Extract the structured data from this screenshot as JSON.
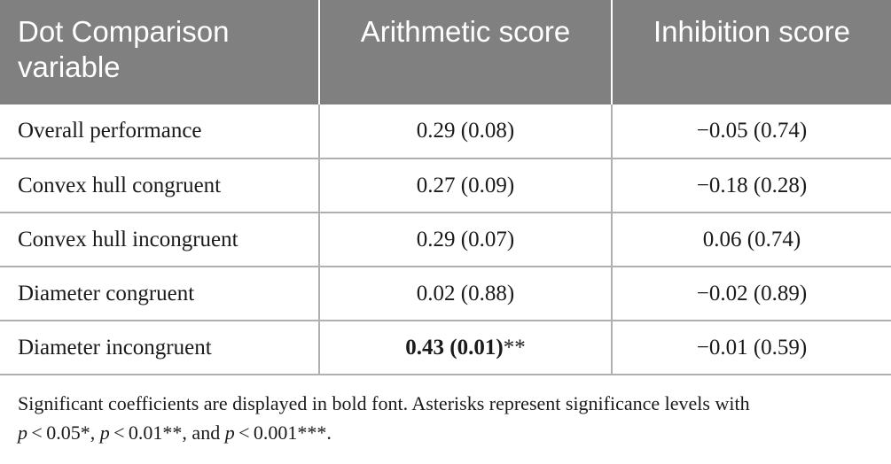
{
  "table": {
    "headers": [
      "Dot Comparison variable",
      "Arithmetic score",
      "Inhibition score"
    ],
    "rows": [
      {
        "variable": "Overall performance",
        "arithmetic": "0.29 (0.08)",
        "arithmetic_suffix": "",
        "inhibition": "−0.05 (0.74)"
      },
      {
        "variable": "Convex hull congruent",
        "arithmetic": "0.27 (0.09)",
        "arithmetic_suffix": "",
        "inhibition": "−0.18 (0.28)"
      },
      {
        "variable": "Convex hull incongruent",
        "arithmetic": "0.29 (0.07)",
        "arithmetic_suffix": "",
        "inhibition": "0.06 (0.74)"
      },
      {
        "variable": "Diameter congruent",
        "arithmetic": "0.02 (0.88)",
        "arithmetic_suffix": "",
        "inhibition": "−0.02 (0.89)"
      },
      {
        "variable": "Diameter incongruent",
        "arithmetic": "0.43 (0.01)",
        "arithmetic_suffix": "**",
        "inhibition": "−0.01 (0.59)"
      }
    ]
  },
  "footnote": {
    "line1": "Significant coefficients are displayed in bold font. Asterisks represent significance levels with",
    "p1": "p",
    "t1": " < 0.05*, ",
    "p2": "p",
    "t2": " < 0.01**, and ",
    "p3": "p",
    "t3": " < 0.001***."
  }
}
